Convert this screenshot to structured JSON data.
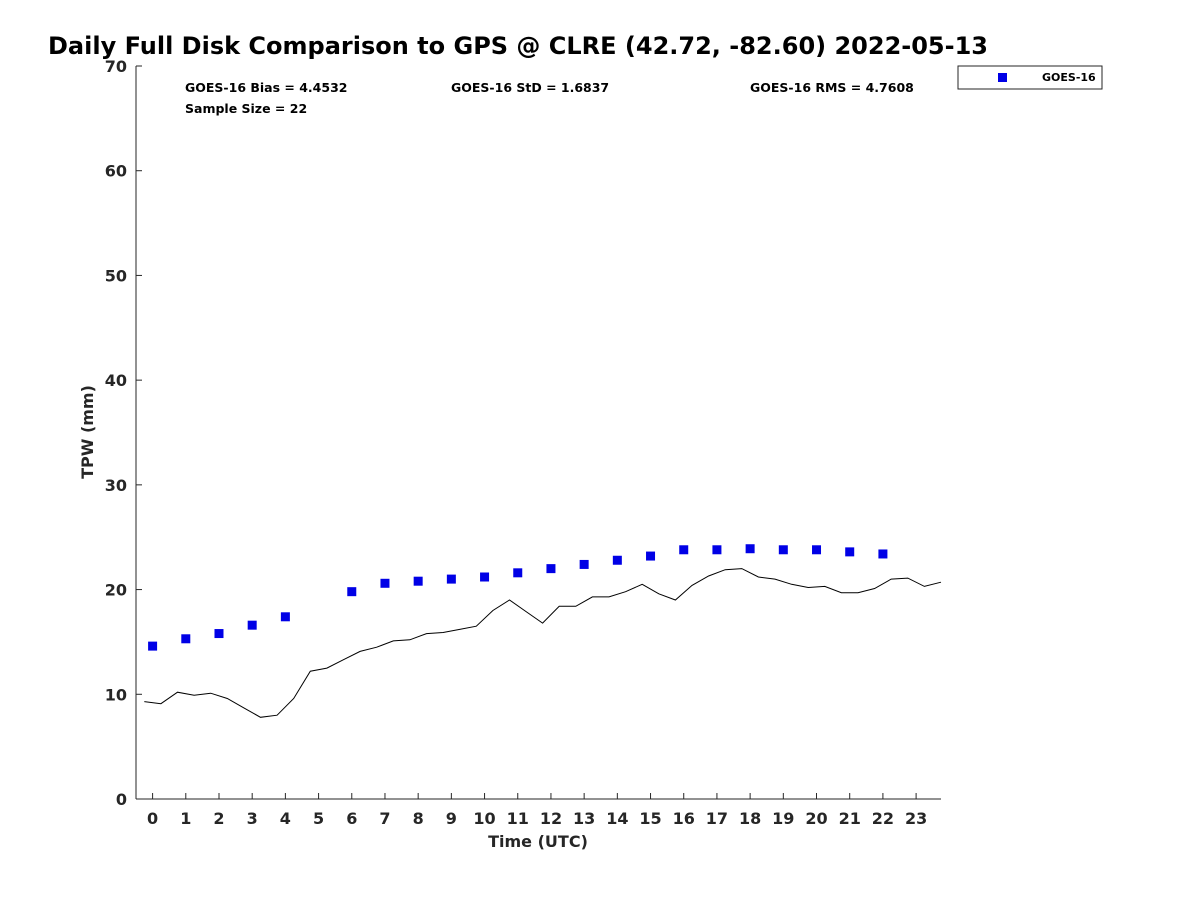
{
  "chart_data": {
    "type": "scatter",
    "title": "Daily Full Disk Comparison to GPS @ CLRE (42.72, -82.60) 2022-05-13",
    "xlabel": "Time (UTC)",
    "ylabel": "TPW (mm)",
    "xlim": [
      -0.5,
      23.75
    ],
    "ylim": [
      0,
      70
    ],
    "xticks": [
      0,
      1,
      2,
      3,
      4,
      5,
      6,
      7,
      8,
      9,
      10,
      11,
      12,
      13,
      14,
      15,
      16,
      17,
      18,
      19,
      20,
      21,
      22,
      23
    ],
    "yticks": [
      0,
      10,
      20,
      30,
      40,
      50,
      60,
      70
    ],
    "legend_position": "top-right (outside plot)",
    "stats": {
      "bias": "GOES-16 Bias = 4.4532",
      "std": "GOES-16 StD = 1.6837",
      "rms": "GOES-16 RMS = 4.7608",
      "sample": "Sample Size = 22"
    },
    "series": [
      {
        "name": "GOES-16",
        "kind": "markers",
        "color": "#0000e6",
        "x": [
          0,
          1,
          2,
          3,
          4,
          6,
          7,
          8,
          9,
          10,
          11,
          12,
          13,
          14,
          15,
          16,
          17,
          18,
          19,
          20,
          21,
          22
        ],
        "y": [
          14.6,
          15.3,
          15.8,
          16.6,
          17.4,
          19.8,
          20.6,
          20.8,
          21.0,
          21.2,
          21.6,
          22.0,
          22.4,
          22.8,
          23.2,
          23.8,
          23.8,
          23.9,
          23.8,
          23.8,
          23.6,
          23.4
        ]
      },
      {
        "kind": "line",
        "color": "#000000",
        "x": [
          -0.25,
          0.25,
          0.75,
          1.25,
          1.75,
          2.25,
          2.75,
          3.25,
          3.75,
          4.25,
          4.75,
          5.25,
          5.75,
          6.25,
          6.75,
          7.25,
          7.75,
          8.25,
          8.75,
          9.25,
          9.75,
          10.25,
          10.75,
          11.25,
          11.75,
          12.25,
          12.75,
          13.25,
          13.75,
          14.25,
          14.75,
          15.25,
          15.75,
          16.25,
          16.75,
          17.25,
          17.75,
          18.25,
          18.75,
          19.25,
          19.75,
          20.25,
          20.75,
          21.25,
          21.75,
          22.25,
          22.75,
          23.25,
          23.75
        ],
        "y": [
          9.3,
          9.1,
          10.2,
          9.9,
          10.1,
          9.6,
          8.7,
          7.8,
          8.0,
          9.6,
          12.2,
          12.5,
          13.3,
          14.1,
          14.5,
          15.1,
          15.2,
          15.8,
          15.9,
          16.2,
          16.5,
          18.0,
          19.0,
          17.9,
          16.8,
          18.4,
          18.4,
          19.3,
          19.3,
          19.8,
          20.5,
          19.6,
          19.0,
          20.4,
          21.3,
          21.9,
          22.0,
          21.2,
          21.0,
          20.5,
          20.2,
          20.3,
          19.7,
          19.7,
          20.1,
          21.0,
          21.1,
          20.3,
          20.7
        ]
      }
    ]
  }
}
